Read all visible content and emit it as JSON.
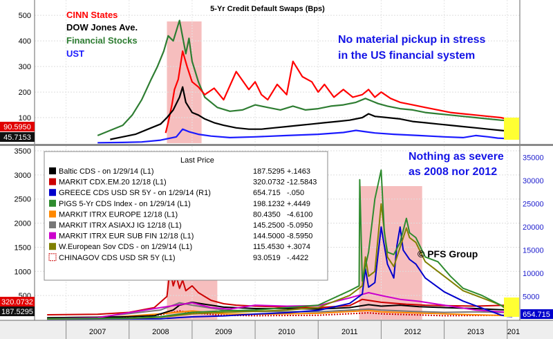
{
  "chart_data": [
    {
      "type": "line",
      "title": "5-Yr Credit Default Swaps (Bps)",
      "x_range": [
        2006.5,
        2014.2
      ],
      "yticks": [
        100,
        200,
        300,
        400,
        500
      ],
      "ylim": [
        0,
        560
      ],
      "legend": [
        {
          "name": "CINN States",
          "color": "#ff0000"
        },
        {
          "name": "DOW Jones Ave.",
          "color": "#000000"
        },
        {
          "name": "Financial Stocks",
          "color": "#2e7d32"
        },
        {
          "name": "UST",
          "color": "#1a1aff"
        }
      ],
      "last_values": [
        {
          "label": "90.5950",
          "bg": "#e00000",
          "value": 90.595
        },
        {
          "label": "45.7153",
          "bg": "#111111",
          "value": 45.7153
        }
      ],
      "annotation": [
        "No material pickup in stress",
        "in the US financial system"
      ],
      "shaded_region": [
        2008.6,
        2009.15
      ],
      "series": [
        {
          "name": "CINN States",
          "color": "#ff0000",
          "x": [
            2008.58,
            2008.62,
            2008.68,
            2008.72,
            2008.78,
            2008.85,
            2008.92,
            2009.0,
            2009.1,
            2009.2,
            2009.35,
            2009.5,
            2009.7,
            2009.9,
            2010.0,
            2010.1,
            2010.2,
            2010.35,
            2010.5,
            2010.6,
            2010.75,
            2010.9,
            2011.0,
            2011.1,
            2011.25,
            2011.4,
            2011.55,
            2011.7,
            2011.8,
            2011.9,
            2012.0,
            2012.15,
            2012.3,
            2012.5,
            2012.7,
            2012.9,
            2013.1,
            2013.3,
            2013.5,
            2013.7,
            2013.9,
            2014.08
          ],
          "y": [
            40,
            80,
            150,
            210,
            250,
            360,
            300,
            240,
            220,
            190,
            215,
            170,
            280,
            210,
            240,
            190,
            170,
            230,
            190,
            320,
            260,
            240,
            200,
            230,
            180,
            210,
            180,
            190,
            210,
            180,
            200,
            175,
            160,
            150,
            140,
            130,
            120,
            115,
            110,
            105,
            100,
            91
          ]
        },
        {
          "name": "DOW Jones Ave.",
          "color": "#000000",
          "x": [
            2007.7,
            2007.9,
            2008.1,
            2008.3,
            2008.5,
            2008.6,
            2008.7,
            2008.8,
            2008.85,
            2008.9,
            2009.0,
            2009.1,
            2009.2,
            2009.35,
            2009.5,
            2009.7,
            2009.9,
            2010.1,
            2010.3,
            2010.5,
            2010.7,
            2010.9,
            2011.1,
            2011.3,
            2011.5,
            2011.7,
            2011.8,
            2011.9,
            2012.1,
            2012.3,
            2012.5,
            2012.7,
            2012.9,
            2013.1,
            2013.3,
            2013.5,
            2013.7,
            2013.9,
            2014.08
          ],
          "y": [
            15,
            25,
            35,
            55,
            75,
            100,
            130,
            180,
            220,
            160,
            120,
            110,
            95,
            80,
            70,
            60,
            55,
            55,
            60,
            65,
            70,
            75,
            80,
            85,
            90,
            100,
            115,
            105,
            100,
            95,
            85,
            80,
            75,
            70,
            65,
            60,
            55,
            50,
            46
          ]
        },
        {
          "name": "Financial Stocks",
          "color": "#2e7d32",
          "x": [
            2007.5,
            2007.7,
            2007.9,
            2008.05,
            2008.2,
            2008.35,
            2008.45,
            2008.55,
            2008.62,
            2008.7,
            2008.8,
            2008.9,
            2008.95,
            2009.0,
            2009.05,
            2009.1,
            2009.2,
            2009.4,
            2009.6,
            2009.8,
            2010.0,
            2010.2,
            2010.4,
            2010.6,
            2010.8,
            2011.0,
            2011.2,
            2011.4,
            2011.6,
            2011.75,
            2011.85,
            2011.95,
            2012.1,
            2012.3,
            2012.5,
            2012.7,
            2012.9,
            2013.1,
            2013.3,
            2013.5,
            2013.7,
            2013.9,
            2014.08
          ],
          "y": [
            30,
            50,
            70,
            110,
            170,
            250,
            300,
            360,
            420,
            400,
            480,
            350,
            410,
            320,
            280,
            240,
            180,
            140,
            125,
            130,
            150,
            140,
            130,
            145,
            130,
            135,
            145,
            150,
            160,
            175,
            165,
            155,
            145,
            135,
            130,
            120,
            115,
            110,
            105,
            100,
            95,
            90,
            88
          ]
        },
        {
          "name": "UST",
          "color": "#1a1aff",
          "x": [
            2007.5,
            2007.9,
            2008.2,
            2008.5,
            2008.75,
            2008.85,
            2008.95,
            2009.1,
            2009.3,
            2009.6,
            2010.0,
            2010.5,
            2011.0,
            2011.4,
            2011.6,
            2011.75,
            2011.9,
            2012.2,
            2012.6,
            2013.0,
            2013.3,
            2013.5,
            2013.7,
            2013.85,
            2014.0,
            2014.08
          ],
          "y": [
            2,
            3,
            5,
            12,
            25,
            55,
            45,
            35,
            28,
            22,
            25,
            30,
            35,
            42,
            50,
            45,
            40,
            35,
            30,
            25,
            22,
            30,
            25,
            20,
            18,
            22
          ]
        }
      ]
    },
    {
      "type": "line",
      "x_labels": [
        "2007",
        "2008",
        "2009",
        "2010",
        "2011",
        "2012",
        "2013",
        "201"
      ],
      "x_label_positions": [
        2007.5,
        2008.5,
        2009.5,
        2010.5,
        2011.5,
        2012.5,
        2013.5,
        2014.1
      ],
      "year_boundaries": [
        2007,
        2008,
        2009,
        2010,
        2011,
        2012,
        2013,
        2014
      ],
      "x_range": [
        2006.5,
        2014.2
      ],
      "left_axis": {
        "ticks": [
          500,
          1000,
          1500,
          2000,
          2500,
          3000,
          3500
        ],
        "ylim": [
          0,
          3600
        ]
      },
      "right_axis": {
        "ticks": [
          5000,
          10000,
          15000,
          20000,
          25000,
          30000,
          35000
        ],
        "ylim": [
          0,
          37500
        ]
      },
      "legend_title": "Last Price",
      "legend": [
        {
          "label": "Baltic CDS -  on 1/29/14  (L1)",
          "value": "187.5295",
          "change": "+.1463",
          "color": "#000000",
          "style": "solid"
        },
        {
          "label": "MARKIT CDX.EM.20 12/18  (L1)",
          "value": "320.0732",
          "change": "-12.5843",
          "color": "#cc0000",
          "style": "solid"
        },
        {
          "label": "GREECE CDS USD SR 5Y -  on 1/29/14  (R1)",
          "value": "654.715",
          "change": "-.050",
          "color": "#0000cc",
          "style": "solid"
        },
        {
          "label": "PIGS 5-Yr CDS Index -  on 1/29/14  (L1)",
          "value": "198.1232",
          "change": "+.4449",
          "color": "#2e8b2e",
          "style": "solid"
        },
        {
          "label": "MARKIT ITRX EUROPE 12/18  (L1)",
          "value": "80.4350",
          "change": "-4.6100",
          "color": "#ff8800",
          "style": "solid"
        },
        {
          "label": "MARKIT ITRX ASIAXJ IG 12/18  (L1)",
          "value": "145.2500",
          "change": "-5.0950",
          "color": "#777777",
          "style": "solid"
        },
        {
          "label": "MARKIT ITRX EUR SUB FIN 12/18  (L1)",
          "value": "144.5000",
          "change": "-8.5950",
          "color": "#cc00cc",
          "style": "solid"
        },
        {
          "label": "W.European Sov CDS -  on 1/29/14  (L1)",
          "value": "115.4530",
          "change": "+.3074",
          "color": "#808000",
          "style": "solid"
        },
        {
          "label": "CHINAGOV CDS USD SR 5Y  (L1)",
          "value": "93.0519",
          "change": "-.4422",
          "color": "#cc0000",
          "style": "dotted"
        }
      ],
      "annotation": [
        "Nothing as severe",
        "as 2008 nor 2012"
      ],
      "credit": "© PFS Group",
      "last_values_left": [
        {
          "label": "320.0732",
          "bg": "#e00000",
          "value": 320.0732
        },
        {
          "label": "187.5295",
          "bg": "#111111",
          "value": 187.5295
        }
      ],
      "last_values_right": [
        {
          "label": "654.715",
          "bg": "#0000cc",
          "value": 654.715
        }
      ],
      "shaded_regions": [
        [
          2008.6,
          2009.4
        ],
        [
          2011.65,
          2012.65
        ]
      ],
      "series": [
        {
          "name": "Baltic CDS",
          "color": "#000000",
          "axis": "left",
          "x": [
            2006.7,
            2007.5,
            2008.0,
            2008.4,
            2008.7,
            2008.8,
            2009.0,
            2009.2,
            2009.5,
            2010.0,
            2010.5,
            2011.0,
            2011.5,
            2011.8,
            2012.0,
            2012.3,
            2012.6,
            2013.0,
            2013.5,
            2014.0,
            2014.08
          ],
          "y": [
            40,
            50,
            60,
            80,
            200,
            300,
            360,
            320,
            260,
            230,
            230,
            220,
            250,
            310,
            280,
            300,
            270,
            250,
            230,
            200,
            188
          ]
        },
        {
          "name": "MARKIT CDX.EM.20 12/18",
          "color": "#cc0000",
          "axis": "left",
          "x": [
            2006.7,
            2007.5,
            2008.0,
            2008.4,
            2008.6,
            2008.65,
            2008.7,
            2008.75,
            2008.8,
            2008.85,
            2008.9,
            2009.0,
            2009.1,
            2009.3,
            2009.5,
            2009.7,
            2010.0,
            2010.5,
            2011.0,
            2011.5,
            2011.7,
            2012.0,
            2012.4,
            2012.7,
            2013.0,
            2013.5,
            2014.0,
            2014.08
          ],
          "y": [
            100,
            110,
            150,
            250,
            480,
            1050,
            700,
            900,
            650,
            820,
            600,
            700,
            560,
            400,
            330,
            300,
            280,
            260,
            250,
            290,
            420,
            360,
            320,
            300,
            290,
            280,
            300,
            320
          ]
        },
        {
          "name": "GREECE CDS USD SR 5Y",
          "color": "#0000cc",
          "axis": "right",
          "x": [
            2006.7,
            2008.5,
            2009.0,
            2009.5,
            2010.0,
            2010.5,
            2011.0,
            2011.5,
            2011.7,
            2011.75,
            2011.8,
            2011.9,
            2012.0,
            2012.1,
            2012.2,
            2012.25,
            2012.3,
            2012.35,
            2012.45,
            2012.55,
            2012.7,
            2013.0,
            2013.3,
            2013.6,
            2013.9,
            2014.0,
            2014.08
          ],
          "y": [
            100,
            200,
            600,
            800,
            1200,
            1500,
            2000,
            3500,
            5500,
            11000,
            7000,
            8000,
            20000,
            12000,
            9000,
            16000,
            20000,
            15000,
            13000,
            12000,
            9000,
            6000,
            4000,
            2500,
            1000,
            700,
            655
          ]
        },
        {
          "name": "PIGS 5-Yr CDS Index",
          "color": "#2e8b2e",
          "axis": "left",
          "x": [
            2006.7,
            2007.5,
            2008.0,
            2008.5,
            2009.0,
            2009.5,
            2010.0,
            2010.5,
            2011.0,
            2011.5,
            2011.65,
            2011.66,
            2011.7,
            2011.8,
            2011.9,
            2012.0,
            2012.05,
            2012.1,
            2012.2,
            2012.3,
            2012.4,
            2012.45,
            2012.55,
            2012.7,
            2012.9,
            2013.1,
            2013.3,
            2013.6,
            2013.9,
            2014.08
          ],
          "y": [
            20,
            25,
            30,
            60,
            150,
            180,
            200,
            250,
            300,
            600,
            700,
            2900,
            800,
            1400,
            2500,
            3100,
            1800,
            1400,
            1350,
            1600,
            2100,
            1800,
            1700,
            1300,
            1200,
            900,
            650,
            500,
            300,
            198
          ]
        },
        {
          "name": "MARKIT ITRX EUROPE 12/18",
          "color": "#ff8800",
          "axis": "left",
          "x": [
            2006.7,
            2007.5,
            2008.5,
            2009.0,
            2009.5,
            2010.0,
            2011.0,
            2011.8,
            2012.0,
            2012.5,
            2013.0,
            2013.5,
            2014.08
          ],
          "y": [
            20,
            30,
            120,
            180,
            120,
            110,
            130,
            190,
            160,
            140,
            120,
            100,
            80
          ]
        },
        {
          "name": "MARKIT ITRX ASIAXJ IG 12/18",
          "color": "#777777",
          "axis": "left",
          "x": [
            2006.7,
            2007.5,
            2008.5,
            2008.8,
            2009.0,
            2009.5,
            2010.0,
            2011.0,
            2011.8,
            2012.0,
            2012.5,
            2013.0,
            2013.5,
            2014.08
          ],
          "y": [
            40,
            50,
            200,
            350,
            300,
            200,
            170,
            160,
            220,
            200,
            170,
            150,
            160,
            145
          ]
        },
        {
          "name": "MARKIT ITRX EUR SUB FIN 12/18",
          "color": "#cc00cc",
          "axis": "left",
          "x": [
            2006.7,
            2007.5,
            2008.5,
            2009.0,
            2009.3,
            2009.6,
            2010.0,
            2010.5,
            2011.0,
            2011.5,
            2011.8,
            2012.0,
            2012.3,
            2012.6,
            2013.0,
            2013.5,
            2014.08
          ],
          "y": [
            20,
            40,
            250,
            350,
            250,
            220,
            300,
            280,
            290,
            450,
            560,
            500,
            420,
            380,
            300,
            200,
            145
          ]
        },
        {
          "name": "W.European Sov CDS",
          "color": "#808000",
          "axis": "left",
          "x": [
            2006.7,
            2007.5,
            2008.0,
            2008.5,
            2009.0,
            2009.5,
            2010.0,
            2010.5,
            2011.0,
            2011.5,
            2011.7,
            2011.75,
            2011.8,
            2011.9,
            2012.0,
            2012.1,
            2012.2,
            2012.3,
            2012.4,
            2012.45,
            2012.55,
            2012.7,
            2012.9,
            2013.1,
            2013.3,
            2013.6,
            2013.9,
            2014.08
          ],
          "y": [
            15,
            20,
            25,
            50,
            120,
            150,
            170,
            200,
            250,
            500,
            700,
            1300,
            900,
            1000,
            2400,
            1300,
            1100,
            1500,
            1900,
            1700,
            1600,
            1200,
            1000,
            800,
            600,
            450,
            300,
            115
          ]
        },
        {
          "name": "CHINAGOV CDS USD SR 5Y",
          "color": "#cc0000",
          "axis": "left",
          "style": "dotted",
          "x": [
            2006.7,
            2007.5,
            2008.5,
            2008.8,
            2009.0,
            2009.5,
            2010.0,
            2011.0,
            2011.8,
            2012.0,
            2012.5,
            2013.0,
            2014.08
          ],
          "y": [
            15,
            20,
            100,
            180,
            140,
            90,
            80,
            90,
            140,
            120,
            100,
            80,
            93
          ]
        }
      ]
    }
  ]
}
